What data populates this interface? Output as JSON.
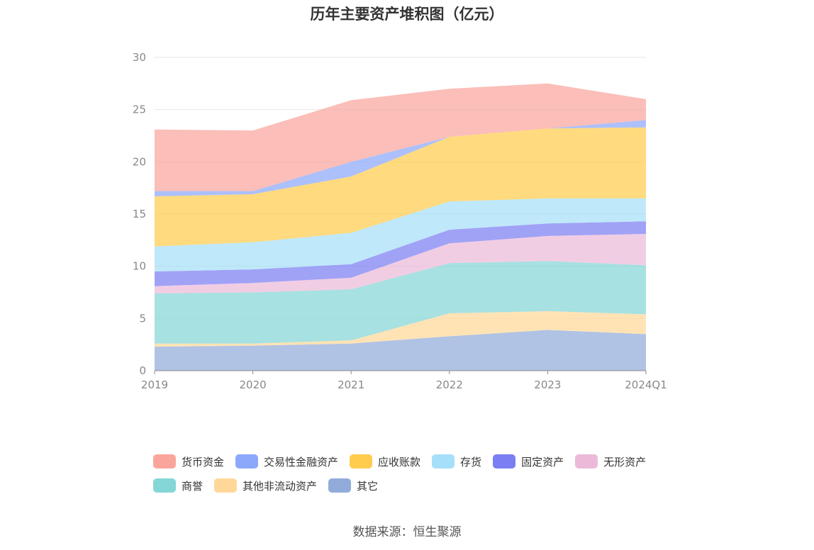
{
  "source": "数据来源：恒生聚源",
  "chart_data": {
    "type": "area",
    "stacked": true,
    "title": "历年主要资产堆积图（亿元）",
    "categories": [
      "2019",
      "2020",
      "2021",
      "2022",
      "2023",
      "2024Q1"
    ],
    "ylim": [
      0,
      30
    ],
    "yticks": [
      0,
      5,
      10,
      15,
      20,
      25,
      30
    ],
    "grid": true,
    "legend_position": "bottom",
    "series": [
      {
        "name": "其它",
        "color": "#91acdb",
        "values": [
          2.3,
          2.4,
          2.6,
          3.3,
          3.9,
          3.5
        ]
      },
      {
        "name": "其他非流动资产",
        "color": "#ffd899",
        "values": [
          0.3,
          0.2,
          0.3,
          2.2,
          1.8,
          1.9
        ]
      },
      {
        "name": "商誉",
        "color": "#85d6d6",
        "values": [
          4.8,
          4.9,
          4.9,
          4.8,
          4.8,
          4.7
        ]
      },
      {
        "name": "无形资产",
        "color": "#ebbad9",
        "values": [
          0.7,
          0.9,
          1.1,
          1.9,
          2.4,
          3.0
        ]
      },
      {
        "name": "固定资产",
        "color": "#7b7ef2",
        "values": [
          1.4,
          1.3,
          1.3,
          1.3,
          1.2,
          1.2
        ]
      },
      {
        "name": "存货",
        "color": "#a6dffa",
        "values": [
          2.4,
          2.6,
          3.0,
          2.7,
          2.4,
          2.2
        ]
      },
      {
        "name": "应收账款",
        "color": "#ffcc4d",
        "values": [
          4.8,
          4.6,
          5.4,
          6.2,
          6.7,
          6.8
        ]
      },
      {
        "name": "交易性金融资产",
        "color": "#8ca8fa",
        "values": [
          0.5,
          0.3,
          1.4,
          0.0,
          0.0,
          0.7
        ]
      },
      {
        "name": "货币资金",
        "color": "#faa59c",
        "values": [
          5.9,
          5.8,
          5.9,
          4.6,
          4.3,
          2.0
        ]
      }
    ]
  }
}
